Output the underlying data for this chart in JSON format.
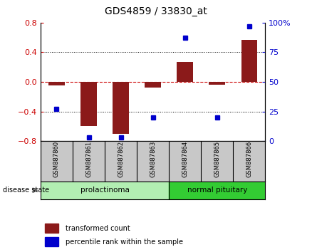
{
  "title": "GDS4859 / 33830_at",
  "samples": [
    "GSM887860",
    "GSM887861",
    "GSM887862",
    "GSM887863",
    "GSM887864",
    "GSM887865",
    "GSM887866"
  ],
  "bar_values": [
    -0.05,
    -0.6,
    -0.7,
    -0.08,
    0.27,
    -0.04,
    0.57
  ],
  "percentile_values": [
    27,
    3,
    3,
    20,
    87,
    20,
    97
  ],
  "ylim_left": [
    -0.8,
    0.8
  ],
  "ylim_right": [
    0,
    100
  ],
  "yticks_left": [
    -0.8,
    -0.4,
    0,
    0.4,
    0.8
  ],
  "yticks_right": [
    0,
    25,
    50,
    75,
    100
  ],
  "bar_color": "#8B1A1A",
  "dot_color": "#0000CC",
  "zero_line_color": "#CC0000",
  "prolactinoma_color": "#B2EEB2",
  "normal_pituitary_color": "#33CC33",
  "bg_color": "#C8C8C8",
  "legend_items": [
    "transformed count",
    "percentile rank within the sample"
  ],
  "legend_colors": [
    "#8B1A1A",
    "#0000CC"
  ],
  "disease_state_label": "disease state"
}
